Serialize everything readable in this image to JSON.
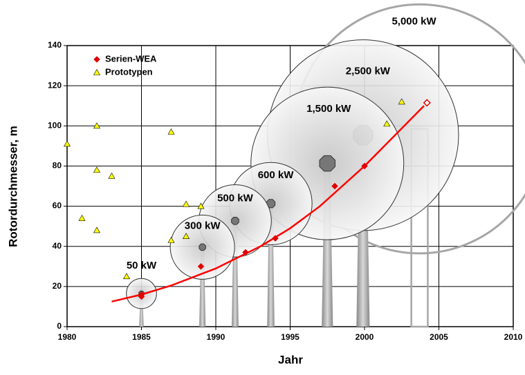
{
  "chart_data": {
    "type": "scatter",
    "xlabel": "Jahr",
    "ylabel": "Rotordurchmesser, m",
    "xlim": [
      1980,
      2010
    ],
    "ylim": [
      0,
      140
    ],
    "xticks": [
      1980,
      1985,
      1990,
      1995,
      2000,
      2005,
      2010
    ],
    "yticks": [
      0,
      20,
      40,
      60,
      80,
      100,
      120,
      140
    ],
    "grid": true,
    "legend": "upper left",
    "series": [
      {
        "name": "Serien-WEA",
        "color": "#e00000",
        "marker": "diamond",
        "open_markers": [
          7
        ],
        "x": [
          1985,
          1985,
          1989,
          1992,
          1994,
          1998,
          2000,
          2004.2
        ],
        "values": [
          15,
          16,
          30,
          37,
          44,
          70,
          80,
          111.5
        ]
      },
      {
        "name": "Prototypen",
        "color": "#ffff00",
        "marker": "triangle",
        "x": [
          1980,
          1981,
          1982,
          1982,
          1982,
          1983,
          1984,
          1987,
          1987,
          1988,
          1988,
          1989,
          2001.5,
          2002.5
        ],
        "values": [
          91,
          54,
          100,
          78,
          48,
          75,
          25,
          97,
          43,
          61,
          45,
          60,
          101,
          112
        ]
      }
    ],
    "trend": {
      "color": "#ff0000",
      "x": [
        1983,
        1985,
        1987,
        1990,
        1993,
        1995,
        1997,
        2000,
        2002,
        2004
      ],
      "values": [
        12.5,
        16,
        20.5,
        29,
        40,
        49,
        60,
        80,
        95,
        110
      ]
    },
    "turbines": [
      {
        "label": "50 kW",
        "x": 1985,
        "hub_height": 16.5,
        "rotor_diameter": 15
      },
      {
        "label": "300 kW",
        "x": 1989.1,
        "hub_height": 39.6,
        "rotor_diameter": 32
      },
      {
        "label": "500 kW",
        "x": 1991.3,
        "hub_height": 52.7,
        "rotor_diameter": 36
      },
      {
        "label": "600 kW",
        "x": 1993.7,
        "hub_height": 61.3,
        "rotor_diameter": 41
      },
      {
        "label": "1,500 kW",
        "x": 1997.5,
        "hub_height": 81.3,
        "rotor_diameter": 76
      },
      {
        "label": "2,500 kW",
        "x": 1999.9,
        "hub_height": 95.4,
        "rotor_diameter": 95
      },
      {
        "label": "5,000 kW",
        "x": 2003.7,
        "hub_height": 98.5,
        "rotor_diameter": 124
      }
    ],
    "label_color": "#3333cc",
    "future_color": "#a6a6a6"
  }
}
